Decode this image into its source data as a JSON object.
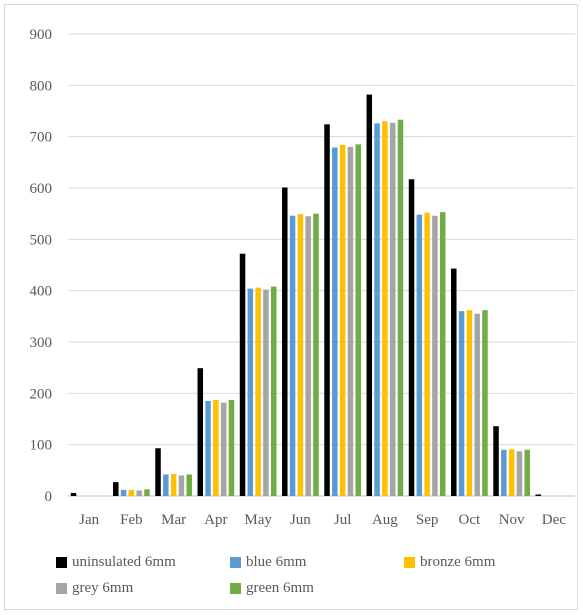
{
  "chart_data": {
    "type": "bar",
    "categories": [
      "Jan",
      "Feb",
      "Mar",
      "Apr",
      "May",
      "Jun",
      "Jul",
      "Aug",
      "Sep",
      "Oct",
      "Nov",
      "Dec"
    ],
    "series": [
      {
        "name": "uninsulated 6mm",
        "color": "#000000",
        "values": [
          6,
          27,
          93,
          249,
          472,
          601,
          724,
          782,
          617,
          443,
          136,
          3
        ]
      },
      {
        "name": "blue 6mm",
        "color": "#5b9bd5",
        "values": [
          0,
          12,
          42,
          185,
          404,
          546,
          679,
          726,
          548,
          360,
          90,
          0
        ]
      },
      {
        "name": "bronze 6mm",
        "color": "#ffc000",
        "values": [
          0,
          12,
          43,
          187,
          406,
          549,
          684,
          730,
          552,
          362,
          91,
          0
        ]
      },
      {
        "name": "grey 6mm",
        "color": "#a5a5a5",
        "values": [
          0,
          11,
          40,
          182,
          402,
          545,
          680,
          727,
          546,
          355,
          87,
          0
        ]
      },
      {
        "name": "green 6mm",
        "color": "#70ad47",
        "values": [
          0,
          13,
          42,
          187,
          408,
          550,
          685,
          733,
          553,
          362,
          90,
          0
        ]
      }
    ],
    "y_ticks": [
      "0",
      "100",
      "200",
      "300",
      "400",
      "500",
      "600",
      "700",
      "800",
      "900"
    ],
    "ylim": [
      0,
      900
    ],
    "grid": true,
    "legend_position": "bottom"
  }
}
